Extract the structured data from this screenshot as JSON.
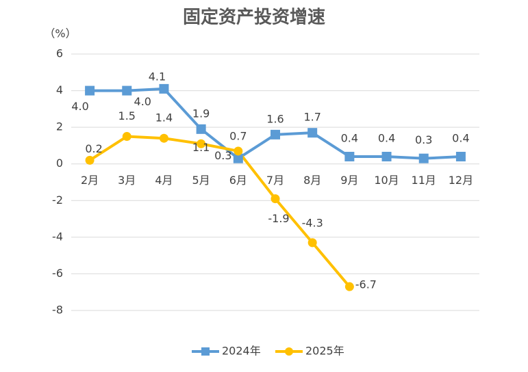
{
  "chart_data": {
    "type": "line",
    "title": "固定资产投资增速",
    "y_label": "（%）",
    "categories": [
      "2月",
      "3月",
      "4月",
      "5月",
      "6月",
      "7月",
      "8月",
      "9月",
      "10月",
      "11月",
      "12月"
    ],
    "series": [
      {
        "name": "2024年",
        "color": "#5b9bd5",
        "marker": "square",
        "values": [
          4,
          4,
          4.1,
          1.9,
          0.3,
          1.6,
          1.7,
          0.4,
          0.4,
          0.3,
          0.4
        ],
        "value_labels": [
          "4.0",
          "4.0",
          "4.1",
          "1.9",
          "0.3",
          "1.6",
          "1.7",
          "0.4",
          "0.4",
          "0.3",
          "0.4"
        ]
      },
      {
        "name": "2025年",
        "color": "#ffc000",
        "marker": "circle",
        "values": [
          0.2,
          1.5,
          1.4,
          1.1,
          0.7,
          -1.9,
          -4.3,
          -6.7,
          null,
          null,
          null
        ],
        "value_labels": [
          "0.2",
          "1.5",
          "1.4",
          "1.1",
          "0.7",
          "-1.9",
          "-4.3",
          "-6.7",
          null,
          null,
          null
        ]
      }
    ],
    "ylim": [
      -8,
      6
    ],
    "yticks": [
      -8,
      -6,
      -4,
      -2,
      0,
      2,
      4,
      6
    ],
    "grid": true,
    "legend": "bottom"
  }
}
